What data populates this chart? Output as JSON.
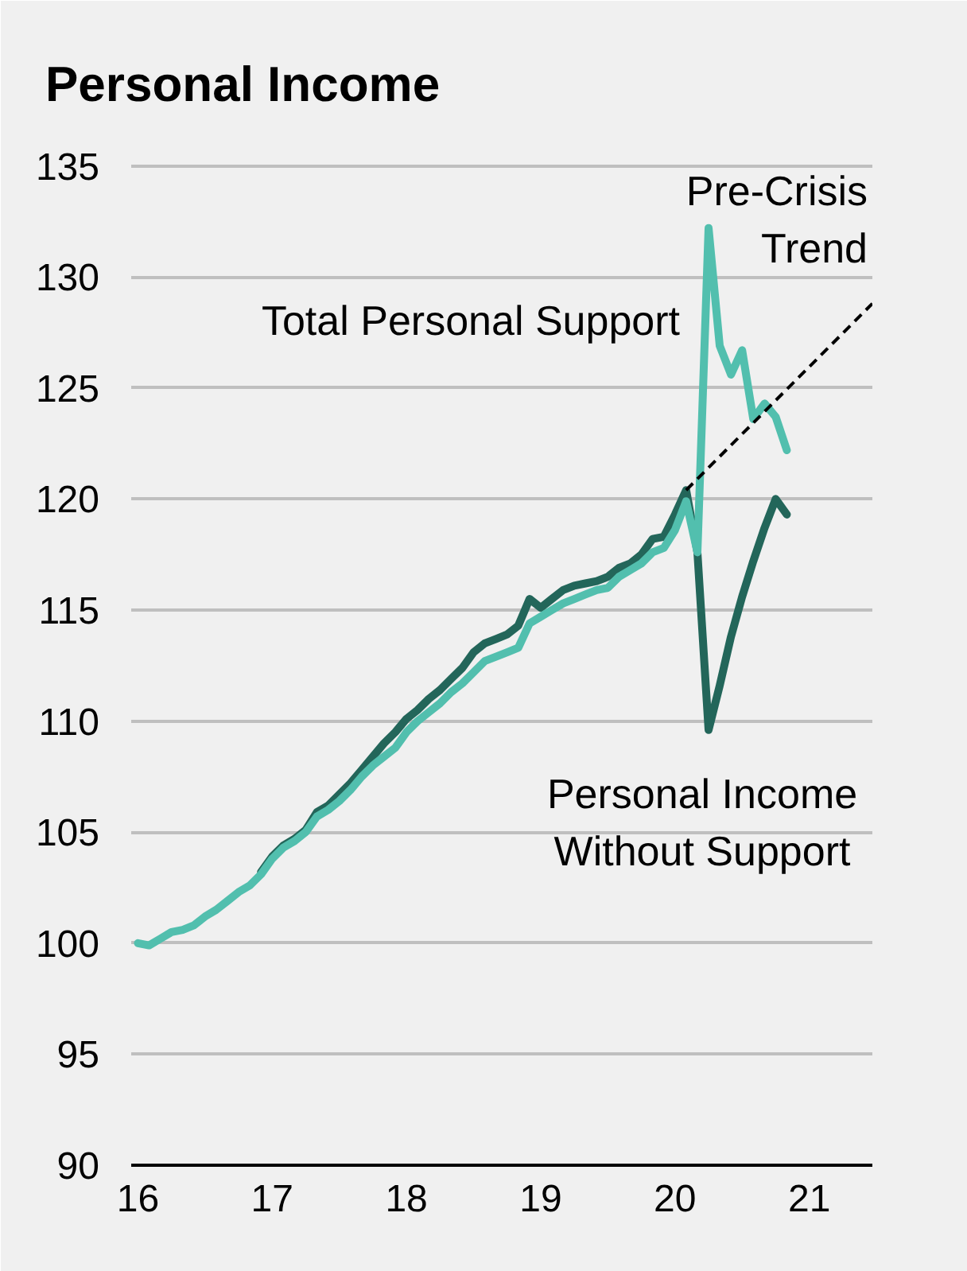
{
  "chart_data": {
    "type": "line",
    "title": "Personal Income",
    "x": [
      16.0,
      16.083,
      16.167,
      16.25,
      16.333,
      16.417,
      16.5,
      16.583,
      16.667,
      16.75,
      16.833,
      16.917,
      17.0,
      17.083,
      17.167,
      17.25,
      17.333,
      17.417,
      17.5,
      17.583,
      17.667,
      17.75,
      17.833,
      17.917,
      18.0,
      18.083,
      18.167,
      18.25,
      18.333,
      18.417,
      18.5,
      18.583,
      18.667,
      18.75,
      18.833,
      18.917,
      19.0,
      19.083,
      19.167,
      19.25,
      19.333,
      19.417,
      19.5,
      19.583,
      19.667,
      19.75,
      19.833,
      19.917,
      20.0,
      20.083,
      20.167,
      20.25,
      20.333,
      20.417,
      20.5,
      20.583,
      20.667,
      20.75,
      20.833
    ],
    "series": [
      {
        "name": "Personal Income Without Support",
        "color": "#23665a",
        "values": [
          null,
          null,
          null,
          null,
          null,
          null,
          null,
          null,
          null,
          null,
          null,
          103.2,
          103.9,
          104.4,
          104.7,
          105.1,
          105.9,
          106.2,
          106.7,
          107.2,
          107.8,
          108.4,
          109.0,
          109.5,
          110.1,
          110.5,
          111.0,
          111.4,
          111.9,
          112.4,
          113.1,
          113.5,
          113.7,
          113.9,
          114.3,
          115.5,
          115.1,
          115.5,
          115.9,
          116.1,
          116.2,
          116.3,
          116.5,
          116.9,
          117.1,
          117.5,
          118.2,
          118.3,
          119.3,
          120.4,
          117.6,
          109.6,
          111.6,
          113.8,
          115.6,
          117.2,
          118.7,
          120.0,
          119.3
        ]
      },
      {
        "name": "Total Personal Support",
        "color": "#52bfae",
        "values": [
          100.0,
          99.9,
          100.2,
          100.5,
          100.6,
          100.8,
          101.2,
          101.5,
          101.9,
          102.3,
          102.6,
          103.1,
          103.8,
          104.3,
          104.6,
          105.0,
          105.7,
          106.0,
          106.4,
          106.9,
          107.5,
          108.0,
          108.4,
          108.8,
          109.5,
          110.0,
          110.4,
          110.8,
          111.3,
          111.7,
          112.2,
          112.7,
          112.9,
          113.1,
          113.3,
          114.4,
          114.7,
          115.0,
          115.3,
          115.5,
          115.7,
          115.9,
          116.0,
          116.5,
          116.8,
          117.1,
          117.6,
          117.8,
          118.6,
          119.9,
          117.6,
          132.2,
          126.9,
          125.6,
          126.7,
          123.6,
          124.3,
          123.7,
          122.2
        ]
      },
      {
        "name": "Pre-Crisis Trend",
        "color": "#000000",
        "line_style": "dashed",
        "x": [
          20.083,
          21.47
        ],
        "values": [
          120.4,
          128.8
        ]
      }
    ],
    "xlim": [
      15.95,
      21.47
    ],
    "ylim": [
      90,
      135.2
    ],
    "xticks": [
      16,
      17,
      18,
      19,
      20,
      21
    ],
    "yticks": [
      90,
      95,
      100,
      105,
      110,
      115,
      120,
      125,
      130,
      135
    ],
    "grid": "y"
  }
}
